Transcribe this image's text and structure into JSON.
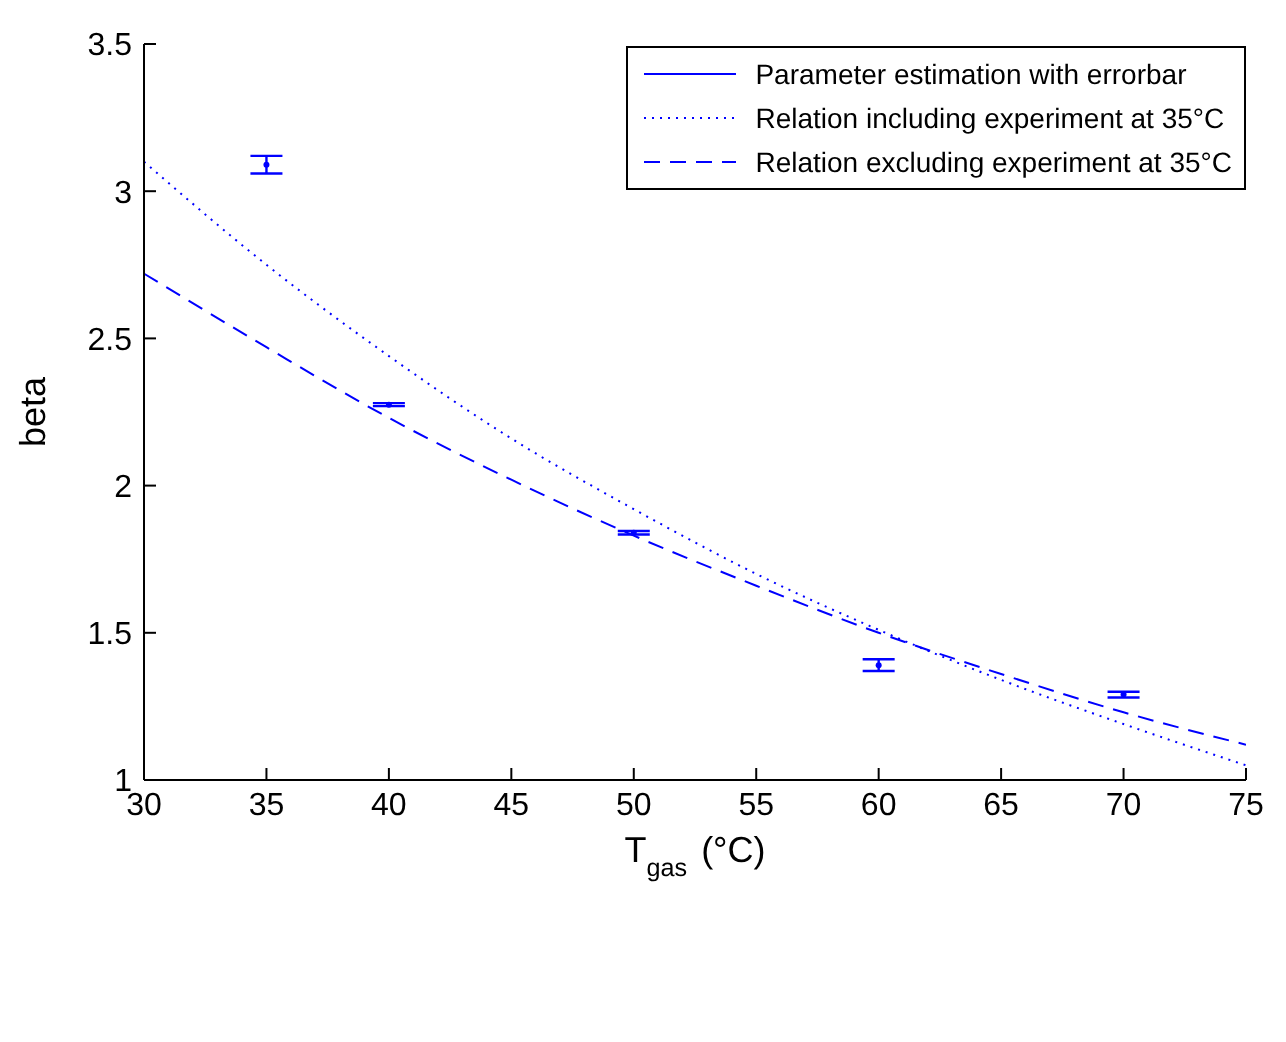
{
  "chart_data": {
    "type": "scatter",
    "xlabel": "T$_{gas}$ (°C)",
    "ylabel": "beta",
    "xlim": [
      30,
      75
    ],
    "xticks": [
      30,
      35,
      40,
      45,
      50,
      55,
      60,
      65,
      70,
      75
    ],
    "ylim": [
      1,
      3.5
    ],
    "yticks": [
      1,
      1.5,
      2,
      2.5,
      3,
      3.5
    ],
    "grid": false,
    "legend": "top right",
    "series": [
      {
        "name": "Parameter estimation with errorbar",
        "color": "#0000ff",
        "x": [
          35,
          40,
          50,
          60,
          70
        ],
        "values": [
          3.09,
          2.275,
          1.84,
          1.39,
          1.29
        ],
        "errors": [
          0.03,
          0.005,
          0.006,
          0.02,
          0.01
        ]
      },
      {
        "name": "Relation including experiment at 35°C",
        "type": "line",
        "line_style": "dotted",
        "marker": "none",
        "color": "#0000ff",
        "x": [
          30,
          35,
          40,
          45,
          50,
          55,
          60,
          65,
          70,
          75
        ],
        "values": [
          3.1,
          2.75,
          2.44,
          2.16,
          1.92,
          1.7,
          1.51,
          1.34,
          1.19,
          1.05
        ]
      },
      {
        "name": "Relation excluding experiment at 35°C",
        "type": "line",
        "line_style": "dashed",
        "marker": "none",
        "color": "#0000ff",
        "x": [
          30,
          35,
          40,
          45,
          50,
          55,
          60,
          65,
          70,
          75
        ],
        "values": [
          2.72,
          2.47,
          2.23,
          2.02,
          1.83,
          1.66,
          1.5,
          1.36,
          1.23,
          1.12
        ]
      }
    ]
  }
}
